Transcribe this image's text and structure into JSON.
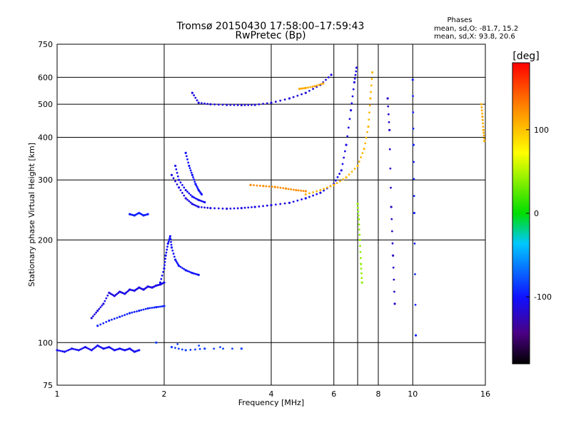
{
  "chart_data": {
    "type": "scatter",
    "title": "Tromsø 20150430 17:58:00–17:59:43",
    "subtitle": "RwPretec (Bp)",
    "xlabel": "Frequency [MHz]",
    "ylabel": "Stationary phase Virtual Height [km]",
    "x_scale": "log",
    "y_scale": "log",
    "xlim": [
      1,
      16
    ],
    "ylim": [
      75,
      750
    ],
    "x_ticks": [
      1,
      2,
      4,
      6,
      8,
      10,
      16
    ],
    "y_ticks": [
      75,
      100,
      200,
      300,
      400,
      500,
      600,
      750
    ],
    "x_gridlines": [
      2,
      4,
      6,
      7,
      8,
      10
    ],
    "y_gridlines": [
      100,
      200,
      300,
      400,
      500,
      600
    ],
    "grid": true,
    "phase_stats": {
      "heading": "Phases",
      "line_o": "mean, sd,O: -81.7, 15.2",
      "line_x": "mean, sd,X:  93.8, 20.6"
    },
    "colorbar": {
      "label": "[deg]",
      "range": [
        -180,
        180
      ],
      "ticks": [
        100,
        0,
        -100
      ],
      "colormap": "rainbow"
    },
    "traces": [
      {
        "points": [
          [
            1.0,
            95
          ],
          [
            1.05,
            94
          ],
          [
            1.1,
            96
          ],
          [
            1.15,
            95
          ],
          [
            1.2,
            97
          ],
          [
            1.25,
            95
          ],
          [
            1.3,
            98
          ],
          [
            1.35,
            96
          ],
          [
            1.4,
            97
          ],
          [
            1.45,
            95
          ],
          [
            1.5,
            96
          ],
          [
            1.55,
            95
          ],
          [
            1.6,
            96
          ],
          [
            1.65,
            94
          ],
          [
            1.7,
            95
          ]
        ],
        "phase": -105
      },
      {
        "points": [
          [
            1.25,
            118
          ],
          [
            1.3,
            124
          ],
          [
            1.35,
            130
          ],
          [
            1.4,
            140
          ],
          [
            1.45,
            137
          ],
          [
            1.5,
            141
          ],
          [
            1.55,
            139
          ],
          [
            1.6,
            143
          ],
          [
            1.65,
            142
          ],
          [
            1.7,
            145
          ],
          [
            1.75,
            143
          ],
          [
            1.8,
            146
          ],
          [
            1.85,
            145
          ],
          [
            1.9,
            147
          ],
          [
            1.95,
            148
          ],
          [
            2.0,
            150
          ]
        ],
        "phase": -110
      },
      {
        "points": [
          [
            1.3,
            112
          ],
          [
            1.4,
            116
          ],
          [
            1.5,
            119
          ],
          [
            1.6,
            122
          ],
          [
            1.7,
            124
          ],
          [
            1.8,
            126
          ],
          [
            1.9,
            127
          ],
          [
            2.0,
            128
          ]
        ],
        "phase": -95
      },
      {
        "points": [
          [
            1.95,
            150
          ],
          [
            2.0,
            165
          ],
          [
            2.02,
            180
          ],
          [
            2.05,
            195
          ],
          [
            2.08,
            205
          ],
          [
            2.1,
            190
          ],
          [
            2.15,
            175
          ],
          [
            2.2,
            168
          ],
          [
            2.3,
            163
          ],
          [
            2.4,
            160
          ],
          [
            2.5,
            158
          ]
        ],
        "phase": -100
      },
      {
        "points": [
          [
            1.6,
            238
          ],
          [
            1.65,
            236
          ],
          [
            1.7,
            240
          ],
          [
            1.75,
            236
          ],
          [
            1.8,
            238
          ]
        ],
        "phase": -95
      },
      {
        "points": [
          [
            2.1,
            310
          ],
          [
            2.2,
            285
          ],
          [
            2.3,
            265
          ],
          [
            2.4,
            255
          ],
          [
            2.5,
            250
          ],
          [
            2.7,
            248
          ],
          [
            3.0,
            247
          ],
          [
            3.3,
            248
          ],
          [
            3.6,
            250
          ],
          [
            4.0,
            253
          ],
          [
            4.5,
            257
          ],
          [
            5.0,
            265
          ],
          [
            5.5,
            275
          ],
          [
            6.0,
            292
          ],
          [
            6.3,
            320
          ],
          [
            6.5,
            380
          ],
          [
            6.7,
            480
          ],
          [
            6.85,
            580
          ],
          [
            6.95,
            640
          ]
        ],
        "phase": -110
      },
      {
        "points": [
          [
            2.15,
            330
          ],
          [
            2.2,
            300
          ],
          [
            2.3,
            280
          ],
          [
            2.4,
            268
          ],
          [
            2.5,
            262
          ],
          [
            2.6,
            258
          ]
        ],
        "phase": -105
      },
      {
        "points": [
          [
            2.3,
            360
          ],
          [
            2.35,
            330
          ],
          [
            2.4,
            310
          ],
          [
            2.45,
            292
          ],
          [
            2.5,
            280
          ],
          [
            2.55,
            272
          ]
        ],
        "phase": -100
      },
      {
        "points": [
          [
            3.5,
            290
          ],
          [
            3.8,
            288
          ],
          [
            4.1,
            286
          ],
          [
            4.4,
            283
          ],
          [
            4.7,
            280
          ],
          [
            5.0,
            278
          ]
        ],
        "phase": 125
      },
      {
        "points": [
          [
            5.0,
            272
          ],
          [
            5.5,
            280
          ],
          [
            6.0,
            290
          ],
          [
            6.5,
            305
          ],
          [
            7.0,
            330
          ],
          [
            7.3,
            370
          ],
          [
            7.5,
            430
          ],
          [
            7.6,
            520
          ],
          [
            7.7,
            620
          ]
        ],
        "phase": 105
      },
      {
        "points": [
          [
            2.4,
            540
          ],
          [
            2.5,
            505
          ],
          [
            2.7,
            500
          ],
          [
            3.0,
            498
          ],
          [
            3.3,
            497
          ],
          [
            3.6,
            498
          ],
          [
            4.0,
            505
          ],
          [
            4.5,
            520
          ],
          [
            5.0,
            540
          ],
          [
            5.5,
            570
          ],
          [
            5.9,
            610
          ]
        ],
        "phase": -112
      },
      {
        "points": [
          [
            4.8,
            555
          ],
          [
            5.0,
            558
          ],
          [
            5.3,
            565
          ],
          [
            5.6,
            575
          ]
        ],
        "phase": 110
      },
      {
        "points": [
          [
            7.0,
            255
          ],
          [
            7.05,
            230
          ],
          [
            7.1,
            200
          ],
          [
            7.15,
            170
          ],
          [
            7.2,
            150
          ]
        ],
        "phase": 40
      },
      {
        "points": [
          [
            8.5,
            520
          ],
          [
            8.6,
            420
          ],
          [
            8.7,
            250
          ],
          [
            8.8,
            180
          ],
          [
            8.9,
            130
          ]
        ],
        "phase": -120
      },
      {
        "points": [
          [
            10.0,
            590
          ],
          [
            10.05,
            380
          ],
          [
            10.1,
            240
          ],
          [
            10.2,
            105
          ]
        ],
        "phase": -95
      },
      {
        "points": [
          [
            15.6,
            500
          ],
          [
            15.7,
            460
          ],
          [
            15.8,
            420
          ],
          [
            15.9,
            390
          ]
        ],
        "phase": 110
      },
      {
        "points": [
          [
            2.1,
            97
          ],
          [
            2.3,
            95
          ],
          [
            2.6,
            96
          ],
          [
            3.3,
            96
          ],
          [
            1.9,
            100
          ]
        ],
        "phase": -85
      }
    ]
  }
}
